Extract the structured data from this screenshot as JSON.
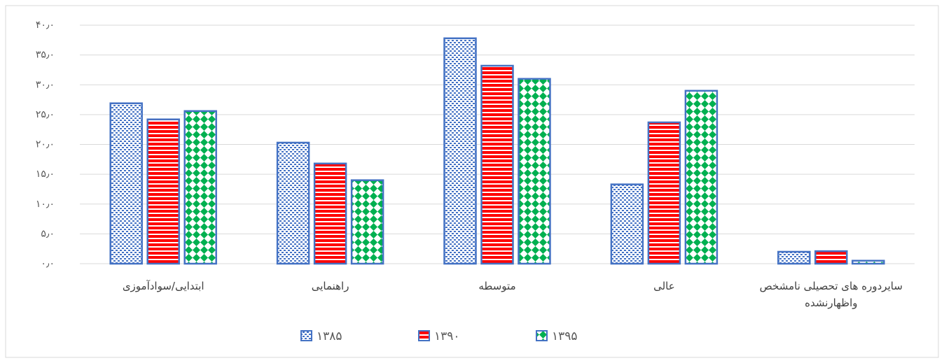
{
  "chart_data": {
    "type": "bar",
    "categories": [
      "ابتدایی/سوادآموزی",
      "راهنمایی",
      "متوسطه",
      "عالی",
      "سایردوره های تحصیلی نامشخص واظهارنشده"
    ],
    "series": [
      {
        "name": "۱۳۸۵",
        "color": "#4472c4",
        "values": [
          26.9,
          20.3,
          37.8,
          13.3,
          2.0
        ]
      },
      {
        "name": "۱۳۹۰",
        "color": "#ff0000",
        "values": [
          24.2,
          16.8,
          33.2,
          23.7,
          2.1
        ]
      },
      {
        "name": "۱۳۹۵",
        "color": "#00b050",
        "values": [
          25.6,
          14.0,
          31.0,
          29.0,
          0.5
        ]
      }
    ],
    "bar_outline": "#4472c4",
    "ylim": [
      0,
      40
    ],
    "yticks": [
      {
        "value": 0,
        "label": "۰٫۰"
      },
      {
        "value": 5,
        "label": "۵٫۰"
      },
      {
        "value": 10,
        "label": "۱۰٫۰"
      },
      {
        "value": 15,
        "label": "۱۵٫۰"
      },
      {
        "value": 20,
        "label": "۲۰٫۰"
      },
      {
        "value": 25,
        "label": "۲۵٫۰"
      },
      {
        "value": 30,
        "label": "۳۰٫۰"
      },
      {
        "value": 35,
        "label": "۳۵٫۰"
      },
      {
        "value": 40,
        "label": "۴۰٫۰"
      }
    ],
    "grid": true,
    "legend": "bottom"
  }
}
